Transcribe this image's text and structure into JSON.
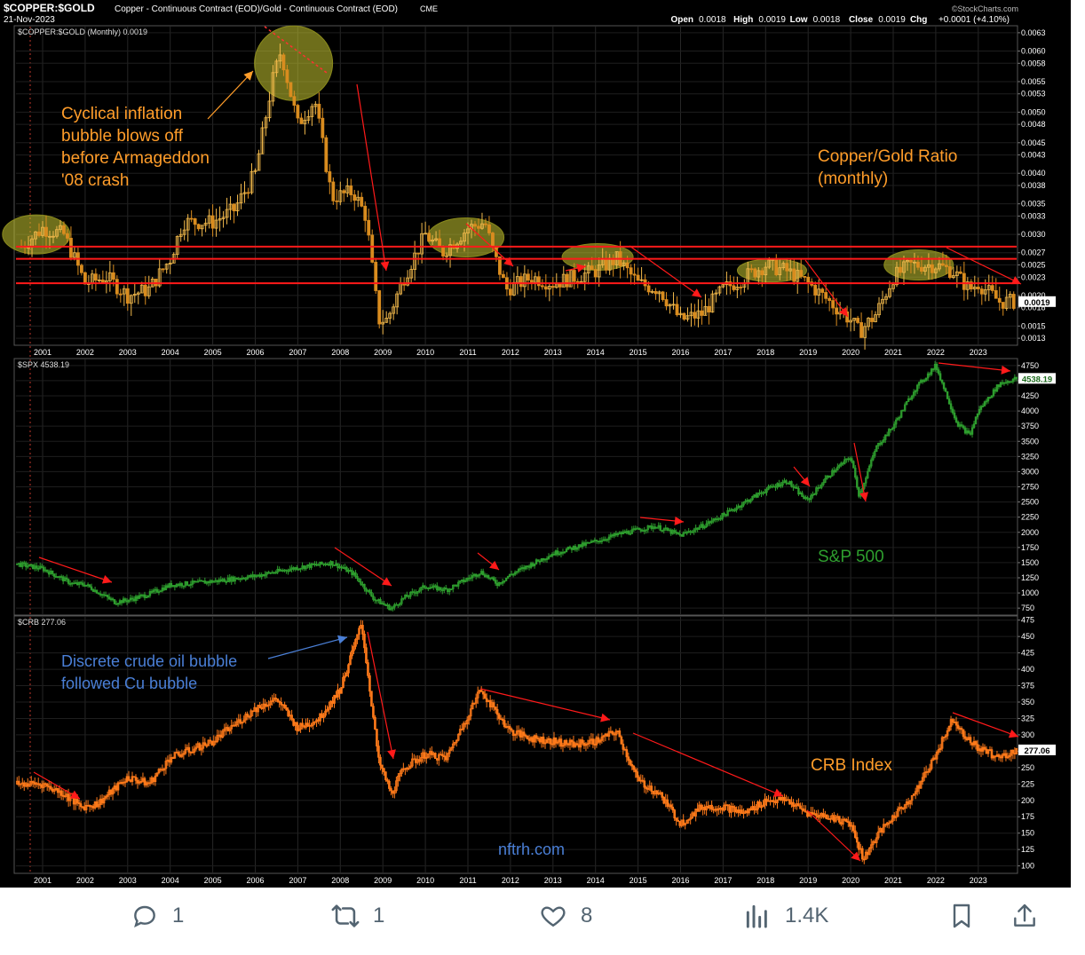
{
  "header": {
    "symbol": "$COPPER:$GOLD",
    "description": "Copper - Continuous Contract (EOD)/Gold - Continuous Contract (EOD)",
    "exchange": "CME",
    "date": "21-Nov-2023",
    "source": "©StockCharts.com",
    "quote": [
      {
        "label": "Open",
        "value": "0.0018"
      },
      {
        "label": "High",
        "value": "0.0019"
      },
      {
        "label": "Low",
        "value": "0.0018"
      },
      {
        "label": "Close",
        "value": "0.0019"
      },
      {
        "label": "Chg",
        "value": "+0.0001 (+4.10%)"
      }
    ]
  },
  "panels": {
    "copper_gold": {
      "legend": "$COPPER:$GOLD (Monthly) 0.0019",
      "last_badge": "0.0019",
      "title_line1": "Copper/Gold Ratio",
      "title_line2": "(monthly)"
    },
    "spx": {
      "legend": "$SPX 4538.19",
      "last_badge": "4538.19",
      "title": "S&P 500"
    },
    "crb": {
      "legend": "$CRB 277.06",
      "last_badge": "277.06",
      "title": "CRB Index"
    }
  },
  "annotations": {
    "cyclical": [
      "Cyclical inflation",
      "bubble blows off",
      "before Armageddon",
      "'08 crash"
    ],
    "crude": [
      "Discrete crude oil bubble",
      "followed Cu bubble"
    ],
    "watermark": "nftrh.com"
  },
  "colors": {
    "background": "#000000",
    "copper_up": "#f2b94b",
    "copper_down": "#d98c1f",
    "spx": "#2e9e2e",
    "crb": "#ff7a1a",
    "support_lines": "#ff1a1a",
    "highlight": "#c8c832",
    "annotation_orange": "#ff9d2a",
    "annotation_blue": "#4a7fd6"
  },
  "chart_data": [
    {
      "type": "line",
      "title": "Copper/Gold Ratio (monthly)",
      "series": [
        {
          "name": "$COPPER:$GOLD",
          "x": [
            2000.5,
            2001.0,
            2001.5,
            2002.0,
            2002.5,
            2003.0,
            2003.5,
            2004.0,
            2004.3,
            2005.0,
            2005.5,
            2006.0,
            2006.4,
            2006.6,
            2007.0,
            2007.4,
            2007.8,
            2008.3,
            2008.6,
            2008.9,
            2009.1,
            2009.5,
            2010.0,
            2010.4,
            2011.0,
            2011.4,
            2011.6,
            2011.9,
            2012.5,
            2013.0,
            2013.5,
            2014.0,
            2014.5,
            2015.0,
            2015.5,
            2016.0,
            2016.5,
            2017.0,
            2017.5,
            2018.0,
            2018.5,
            2019.0,
            2019.5,
            2020.0,
            2020.2,
            2020.6,
            2021.0,
            2021.4,
            2022.0,
            2022.4,
            2022.8,
            2023.0,
            2023.5,
            2023.9
          ],
          "values": [
            0.0028,
            0.0031,
            0.003,
            0.0022,
            0.0023,
            0.002,
            0.0021,
            0.0026,
            0.0032,
            0.0032,
            0.0034,
            0.004,
            0.0055,
            0.006,
            0.0048,
            0.0052,
            0.0036,
            0.0037,
            0.0033,
            0.0016,
            0.0016,
            0.0023,
            0.003,
            0.0027,
            0.0031,
            0.0032,
            0.0027,
            0.0021,
            0.0023,
            0.0022,
            0.0023,
            0.0024,
            0.0026,
            0.0022,
            0.0021,
            0.0016,
            0.0017,
            0.0021,
            0.0023,
            0.0025,
            0.0024,
            0.0022,
            0.0019,
            0.0016,
            0.0014,
            0.0017,
            0.0023,
            0.0025,
            0.0025,
            0.0024,
            0.0021,
            0.0022,
            0.0019,
            0.0019
          ]
        }
      ],
      "ylim": [
        0.0012,
        0.0064
      ],
      "support_levels": [
        0.0022,
        0.0026,
        0.0028
      ],
      "ticks": [
        "0.0013",
        "0.0015",
        "0.0018",
        "0.0020",
        "0.0023",
        "0.0025",
        "0.0027",
        "0.0030",
        "0.0033",
        "0.0035",
        "0.0038",
        "0.0040",
        "0.0043",
        "0.0045",
        "0.0048",
        "0.0050",
        "0.0053",
        "0.0055",
        "0.0058",
        "0.0060",
        "0.0063"
      ]
    },
    {
      "type": "line",
      "title": "S&P 500",
      "series": [
        {
          "name": "$SPX",
          "x": [
            2000.4,
            2001.0,
            2001.7,
            2002.0,
            2002.7,
            2003.0,
            2003.5,
            2004.0,
            2005.0,
            2006.0,
            2007.0,
            2007.8,
            2008.3,
            2008.8,
            2009.2,
            2009.5,
            2010.0,
            2010.5,
            2011.3,
            2011.7,
            2012.0,
            2013.0,
            2014.0,
            2014.6,
            2015.4,
            2016.0,
            2016.5,
            2017.0,
            2018.0,
            2018.5,
            2018.97,
            2019.5,
            2020.0,
            2020.2,
            2020.6,
            2021.0,
            2021.5,
            2022.0,
            2022.5,
            2022.8,
            2023.0,
            2023.5,
            2023.9
          ],
          "values": [
            1480,
            1400,
            1150,
            1140,
            850,
            880,
            980,
            1130,
            1190,
            1280,
            1420,
            1500,
            1320,
            900,
            740,
            920,
            1110,
            1050,
            1350,
            1150,
            1300,
            1650,
            1850,
            1980,
            2100,
            1950,
            2100,
            2280,
            2700,
            2850,
            2520,
            2950,
            3250,
            2600,
            3400,
            3750,
            4350,
            4750,
            3800,
            3600,
            4000,
            4450,
            4538
          ]
        }
      ],
      "ylim": [
        650,
        4850
      ],
      "ticks": [
        "750",
        "1000",
        "1250",
        "1500",
        "1750",
        "2000",
        "2250",
        "2500",
        "2750",
        "3000",
        "3250",
        "3500",
        "3750",
        "4000",
        "4250",
        "4500",
        "4750"
      ]
    },
    {
      "type": "line",
      "title": "CRB Index",
      "series": [
        {
          "name": "$CRB",
          "x": [
            2000.4,
            2001.0,
            2001.5,
            2001.9,
            2002.3,
            2003.0,
            2003.5,
            2004.0,
            2005.0,
            2006.0,
            2006.5,
            2007.0,
            2007.5,
            2008.0,
            2008.5,
            2008.9,
            2009.2,
            2009.5,
            2010.0,
            2010.5,
            2011.0,
            2011.3,
            2011.6,
            2012.0,
            2012.5,
            2013.0,
            2013.5,
            2014.0,
            2014.5,
            2015.0,
            2015.5,
            2016.0,
            2016.5,
            2017.0,
            2017.5,
            2018.0,
            2018.5,
            2019.0,
            2019.5,
            2020.0,
            2020.3,
            2020.6,
            2021.0,
            2021.5,
            2022.0,
            2022.4,
            2022.8,
            2023.0,
            2023.5,
            2023.9
          ],
          "values": [
            225,
            225,
            210,
            190,
            195,
            235,
            225,
            265,
            290,
            340,
            355,
            310,
            325,
            370,
            470,
            260,
            210,
            250,
            270,
            265,
            330,
            370,
            340,
            305,
            295,
            290,
            285,
            290,
            305,
            230,
            210,
            165,
            190,
            190,
            180,
            200,
            200,
            180,
            175,
            165,
            110,
            145,
            175,
            210,
            270,
            325,
            290,
            280,
            265,
            277
          ]
        }
      ],
      "ylim": [
        90,
        480
      ],
      "ticks": [
        "100",
        "125",
        "150",
        "175",
        "200",
        "225",
        "250",
        "275",
        "300",
        "325",
        "350",
        "375",
        "400",
        "425",
        "450",
        "475"
      ]
    }
  ],
  "xaxis": {
    "years": [
      "2001",
      "2002",
      "2003",
      "2004",
      "2005",
      "2006",
      "2007",
      "2008",
      "2009",
      "2010",
      "2011",
      "2012",
      "2013",
      "2014",
      "2015",
      "2016",
      "2017",
      "2018",
      "2019",
      "2020",
      "2021",
      "2022",
      "2023"
    ]
  },
  "actions": [
    {
      "name": "reply",
      "icon": "reply-icon",
      "count": "1"
    },
    {
      "name": "retweet",
      "icon": "retweet-icon",
      "count": "1"
    },
    {
      "name": "like",
      "icon": "heart-icon",
      "count": "8"
    },
    {
      "name": "views",
      "icon": "views-icon",
      "count": "1.4K"
    },
    {
      "name": "bookmark",
      "icon": "bookmark-icon",
      "count": ""
    },
    {
      "name": "share",
      "icon": "share-icon",
      "count": ""
    }
  ]
}
